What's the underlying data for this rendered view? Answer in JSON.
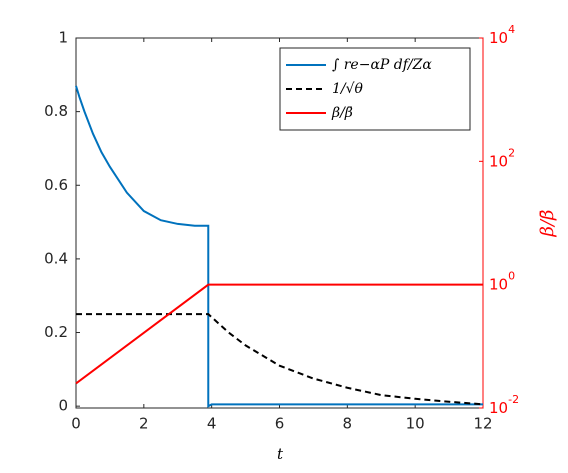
{
  "chart_data": {
    "type": "line",
    "xlabel": "t",
    "y2label": "β/β̄",
    "xlim": [
      0,
      12
    ],
    "xticks": [
      0,
      2,
      4,
      6,
      8,
      10,
      12
    ],
    "ylim": [
      -0.005,
      1
    ],
    "yticks": [
      0,
      0.2,
      0.4,
      0.6,
      0.8,
      1
    ],
    "y2lim": [
      0.01,
      10000
    ],
    "y2log": true,
    "y2ticks": [
      {
        "value": 0.01,
        "label": "10",
        "exponent": "-2"
      },
      {
        "value": 1,
        "label": "10",
        "exponent": "0"
      },
      {
        "value": 100,
        "label": "10",
        "exponent": "2"
      },
      {
        "value": 10000,
        "label": "10",
        "exponent": "4"
      }
    ],
    "y2color": "#ff0000",
    "legend": "upper right",
    "series": [
      {
        "name": "∫ re−αP df/Zα",
        "color": "#0072bd",
        "dash": false,
        "x": [
          0,
          0.1,
          0.25,
          0.5,
          0.75,
          1,
          1.5,
          2,
          2.5,
          3,
          3.5,
          3.9,
          3.9,
          4,
          6,
          8,
          10,
          12
        ],
        "values": [
          0.87,
          0.84,
          0.8,
          0.74,
          0.69,
          0.65,
          0.58,
          0.53,
          0.505,
          0.495,
          0.49,
          0.49,
          0,
          0.005,
          0.005,
          0.005,
          0.005,
          0.005
        ]
      },
      {
        "name": "1/√θ",
        "color": "#000000",
        "dash": true,
        "x": [
          0,
          3.9,
          4.5,
          5,
          6,
          7,
          8,
          9,
          10,
          11,
          12
        ],
        "values": [
          0.25,
          0.25,
          0.2,
          0.165,
          0.11,
          0.075,
          0.05,
          0.03,
          0.02,
          0.012,
          0.005
        ]
      },
      {
        "name": "β/β̄",
        "color": "#ff0000",
        "dash": false,
        "axis": "y2",
        "x": [
          0,
          3.9,
          12
        ],
        "values": [
          0.025,
          1,
          1
        ]
      }
    ]
  }
}
